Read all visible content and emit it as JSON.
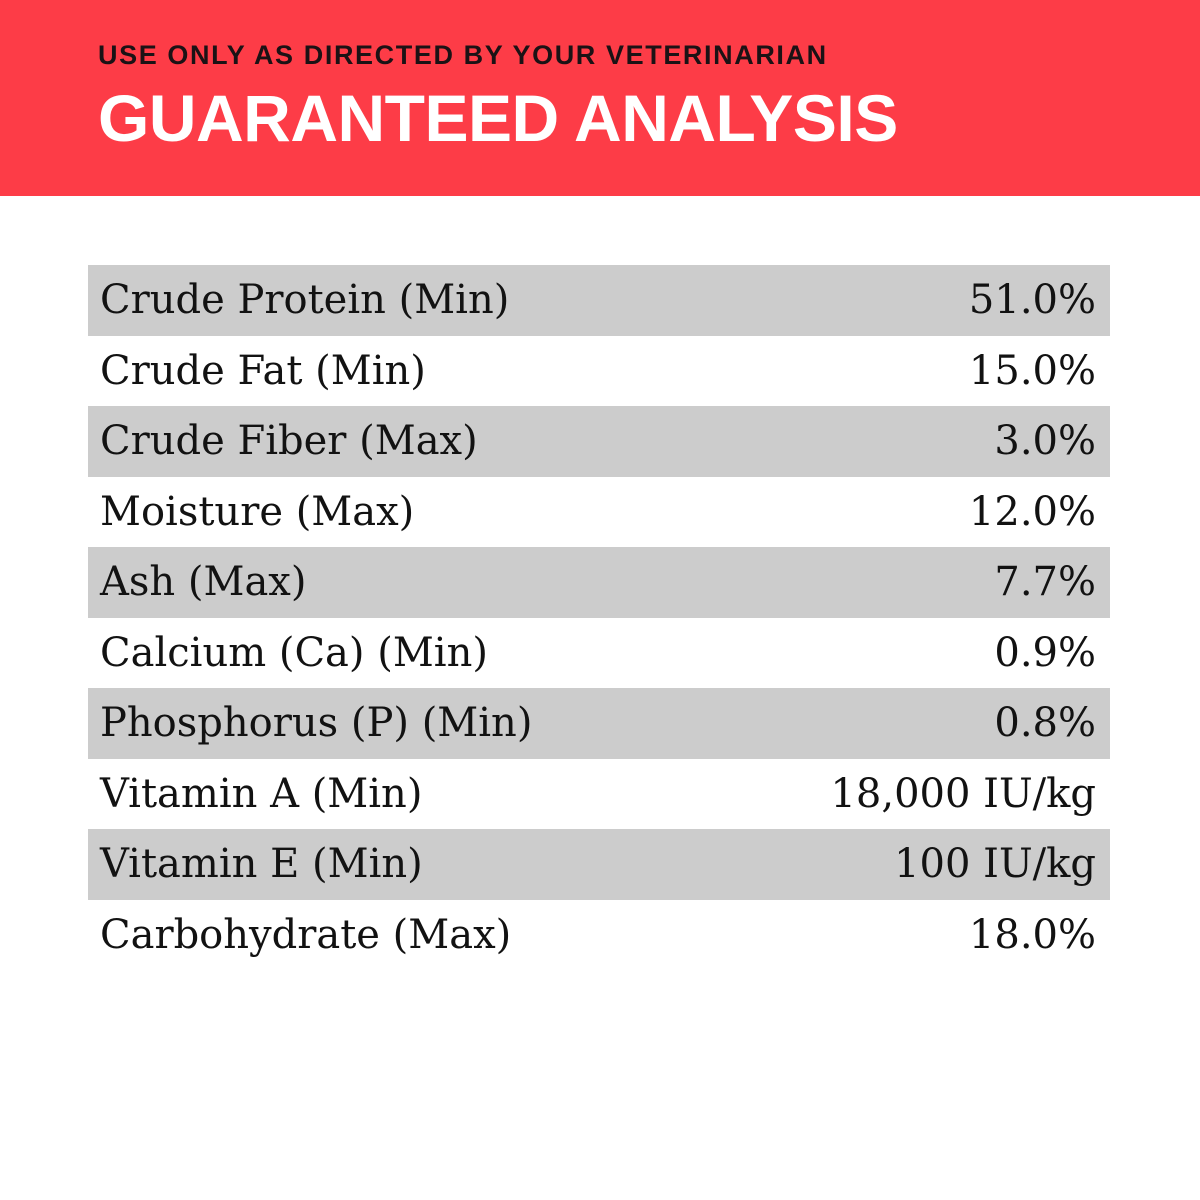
{
  "header": {
    "directive": "USE ONLY AS DIRECTED BY YOUR VETERINARIAN",
    "title": "GUARANTEED ANALYSIS"
  },
  "colors": {
    "banner_red": "#FD3C47",
    "directive_ink": "#1B1215",
    "title_ink": "#FFFFFF",
    "stripe_gray": "#CCCCCC"
  },
  "table": {
    "rows": [
      {
        "label": "Crude Protein (Min)",
        "value": "51.0%"
      },
      {
        "label": "Crude Fat (Min)",
        "value": "15.0%"
      },
      {
        "label": "Crude Fiber (Max)",
        "value": "3.0%"
      },
      {
        "label": "Moisture (Max)",
        "value": "12.0%"
      },
      {
        "label": "Ash (Max)",
        "value": "7.7%"
      },
      {
        "label": "Calcium (Ca) (Min)",
        "value": "0.9%"
      },
      {
        "label": "Phosphorus (P) (Min)",
        "value": "0.8%"
      },
      {
        "label": "Vitamin A (Min)",
        "value": "18,000 IU/kg"
      },
      {
        "label": "Vitamin E (Min)",
        "value": "100 IU/kg"
      },
      {
        "label": "Carbohydrate (Max)",
        "value": "18.0%"
      }
    ]
  }
}
